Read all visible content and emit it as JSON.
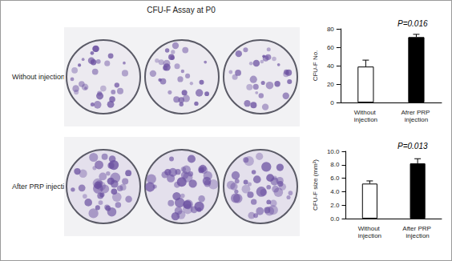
{
  "figure": {
    "title": "CFU-F Assay at P0",
    "row_labels": [
      "Without injection",
      "After PRP injection"
    ]
  },
  "chart_data": [
    {
      "type": "bar",
      "y_label": "CFU-F No.",
      "categories": [
        "Without injection",
        "Afrer PRP injection"
      ],
      "values": [
        39,
        71
      ],
      "errors": [
        7,
        3
      ],
      "colors": [
        "#ffffff",
        "#000000"
      ],
      "ylim": [
        0,
        80
      ],
      "yticks": [
        0,
        20,
        40,
        60,
        80
      ],
      "annotation": "P=0.016"
    },
    {
      "type": "bar",
      "y_label": "CFU-F size (mm²)",
      "categories": [
        "Without injection",
        "After PRP injection"
      ],
      "values": [
        5.2,
        8.2
      ],
      "errors": [
        0.4,
        0.7
      ],
      "colors": [
        "#ffffff",
        "#000000"
      ],
      "ylim": [
        0,
        10
      ],
      "yticks": [
        {
          "value": 0,
          "label": "0.0"
        },
        {
          "value": 2,
          "label": "2.0"
        },
        {
          "value": 4,
          "label": "4.0"
        },
        {
          "value": 6,
          "label": "6.0"
        },
        {
          "value": 8,
          "label": "8.0"
        },
        {
          "value": 10,
          "label": "10.0"
        }
      ],
      "annotation": "P=0.013"
    }
  ]
}
